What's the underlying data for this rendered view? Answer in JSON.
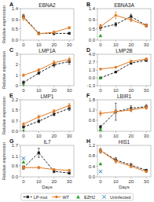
{
  "chart_data": [
    {
      "type": "line",
      "title": "EBNA2",
      "annotation": "A",
      "ylabel": "Relative expression",
      "x": [
        0,
        10,
        20,
        30
      ],
      "series": [
        {
          "name": "LP-mut",
          "color": "#222222",
          "line_style": "dashed",
          "marker": "square",
          "values": [
            1.05,
            0.3,
            0.3,
            0.3
          ],
          "errors": [
            0.1,
            0.05,
            0.07,
            0.04
          ]
        },
        {
          "name": "WT",
          "color": "#e07820",
          "line_style": "solid",
          "marker": "circle",
          "values": [
            1.0,
            0.28,
            0.35,
            0.55
          ],
          "errors": [
            0.12,
            0.04,
            0.06,
            0.05
          ]
        }
      ],
      "xlim": [
        -2,
        33
      ],
      "xticks": [
        0,
        10,
        20,
        30
      ],
      "ylim": [
        0,
        1.4
      ],
      "yticks": [
        {
          "value": 0,
          "label": "0.0"
        },
        0.5,
        0.9,
        1.4
      ]
    },
    {
      "type": "line",
      "title": "EBNA3A",
      "annotation": "B",
      "x": [
        0,
        10,
        20,
        30
      ],
      "series": [
        {
          "name": "LP-mut",
          "color": "#222222",
          "line_style": "dashed",
          "marker": "square",
          "values": [
            0.55,
            0.7,
            1.05,
            0.65
          ],
          "errors": [
            0.12,
            0.08,
            0.1,
            0.06
          ]
        },
        {
          "name": "WT",
          "color": "#e07820",
          "line_style": "solid",
          "marker": "circle",
          "values": [
            0.6,
            1.1,
            0.9,
            0.65
          ],
          "errors": [
            0.1,
            0.15,
            0.08,
            0.07
          ]
        },
        {
          "name": "EZH2",
          "type": "scatter",
          "color": "#2ca02c",
          "marker": "triangle",
          "x": [
            0
          ],
          "values": [
            0.2
          ]
        }
      ],
      "xlim": [
        -2,
        33
      ],
      "xticks": [
        0,
        10,
        20,
        30
      ],
      "ylim": [
        0,
        1.4
      ],
      "yticks": [
        {
          "value": 0,
          "label": "0.0"
        },
        0.5,
        0.9,
        1.4
      ]
    },
    {
      "type": "line",
      "title": "LMP1A",
      "annotation": "C",
      "ylabel": "Relative expression",
      "x": [
        0,
        10,
        20,
        30
      ],
      "series": [
        {
          "name": "LP-mut",
          "color": "#222222",
          "line_style": "dashed",
          "marker": "square",
          "values": [
            0.3,
            1.2,
            2.0,
            2.3
          ],
          "errors": [
            0.15,
            0.1,
            0.2,
            0.25
          ]
        },
        {
          "name": "WT",
          "color": "#e07820",
          "line_style": "solid",
          "marker": "circle",
          "values": [
            1.0,
            1.5,
            2.2,
            2.5
          ],
          "errors": [
            0.12,
            0.12,
            0.18,
            0.2
          ]
        },
        {
          "name": "EZH2",
          "type": "scatter",
          "color": "#2ca02c",
          "marker": "triangle",
          "x": [
            0
          ],
          "values": [
            0.05
          ]
        }
      ],
      "xlim": [
        -2,
        33
      ],
      "xticks": [
        0,
        10,
        20,
        30
      ],
      "ylim": [
        0,
        3.0
      ],
      "yticks": [
        0,
        1,
        2,
        3
      ]
    },
    {
      "type": "line",
      "title": "LMP2B",
      "annotation": "D",
      "x": [
        0,
        10,
        20,
        30
      ],
      "series": [
        {
          "name": "LP-mut",
          "color": "#222222",
          "line_style": "dashed",
          "marker": "square",
          "values": [
            0.0,
            1.0,
            2.5,
            3.0
          ],
          "errors": [
            0.05,
            0.1,
            0.2,
            0.25
          ]
        },
        {
          "name": "WT",
          "color": "#e07820",
          "line_style": "solid",
          "marker": "circle",
          "values": [
            1.5,
            1.8,
            2.8,
            3.2
          ],
          "errors": [
            0.15,
            0.12,
            0.2,
            0.2
          ]
        },
        {
          "name": "EZH2",
          "type": "scatter",
          "color": "#2ca02c",
          "marker": "triangle",
          "x": [
            0
          ],
          "values": [
            0.05
          ]
        }
      ],
      "xlim": [
        -2,
        33
      ],
      "xticks": [
        0,
        10,
        20,
        30
      ],
      "ylim": [
        -1.3,
        4.0
      ],
      "yticks": [
        -1.3,
        {
          "value": 0,
          "label": "0.0"
        },
        1.3,
        2.7,
        {
          "value": 4,
          "label": "4.0"
        }
      ]
    },
    {
      "type": "line",
      "title": "LMP1",
      "annotation": "E",
      "ylabel": "Relative expression",
      "x": [
        0,
        10,
        20,
        30
      ],
      "series": [
        {
          "name": "LP-mut",
          "color": "#222222",
          "line_style": "dashed",
          "marker": "square",
          "values": [
            0.3,
            0.7,
            1.2,
            1.6
          ],
          "errors": [
            0.08,
            0.1,
            0.12,
            0.15
          ]
        },
        {
          "name": "WT",
          "color": "#e07820",
          "line_style": "solid",
          "marker": "circle",
          "values": [
            0.5,
            1.0,
            1.4,
            1.8
          ],
          "errors": [
            0.1,
            0.12,
            0.12,
            0.15
          ]
        },
        {
          "name": "EZH2",
          "type": "scatter",
          "color": "#2ca02c",
          "marker": "triangle",
          "x": [
            0
          ],
          "values": [
            0.05
          ]
        }
      ],
      "xlim": [
        -2,
        33
      ],
      "xticks": [
        0,
        10,
        20,
        30
      ],
      "ylim": [
        0,
        2.2
      ],
      "yticks": [
        {
          "value": 0,
          "label": "0.0"
        },
        0.7,
        1.5,
        2.2
      ]
    },
    {
      "type": "line",
      "title": "LBIR1",
      "annotation": "F",
      "x": [
        0,
        10,
        20,
        30
      ],
      "series": [
        {
          "name": "LP-mut",
          "color": "#222222",
          "line_style": "dashed",
          "marker": "square",
          "values": [
            0.2,
            1.1,
            1.3,
            1.4
          ],
          "errors": [
            0.1,
            0.5,
            0.15,
            0.12
          ]
        },
        {
          "name": "WT",
          "color": "#e07820",
          "line_style": "solid",
          "marker": "circle",
          "values": [
            1.0,
            1.1,
            1.2,
            1.35
          ],
          "errors": [
            0.15,
            0.12,
            0.1,
            0.1
          ]
        },
        {
          "name": "EZH2",
          "type": "scatter",
          "color": "#2ca02c",
          "marker": "triangle",
          "x": [
            0
          ],
          "values": [
            0.05
          ]
        }
      ],
      "xlim": [
        -2,
        33
      ],
      "xticks": [
        0,
        10,
        20,
        30
      ],
      "ylim": [
        -0.05,
        1.8
      ],
      "yticks": [
        0.6,
        1.2,
        1.8
      ]
    },
    {
      "type": "line",
      "title": "IL7",
      "annotation": "G",
      "xlabel": "Days",
      "ylabel": "Relative expression",
      "x": [
        0,
        10,
        20,
        30
      ],
      "series": [
        {
          "name": "LP-mut",
          "color": "#222222",
          "line_style": "dashed",
          "marker": "square",
          "values": [
            0.5,
            1.3,
            0.3,
            0.2
          ],
          "errors": [
            0.1,
            0.25,
            0.08,
            0.05
          ]
        },
        {
          "name": "WT",
          "color": "#e07820",
          "line_style": "solid",
          "marker": "circle",
          "values": [
            0.5,
            0.5,
            0.4,
            0.35
          ],
          "errors": [
            0.08,
            0.07,
            0.05,
            0.04
          ]
        },
        {
          "name": "EZH2",
          "type": "scatter",
          "color": "#2ca02c",
          "marker": "triangle",
          "x": [
            0
          ],
          "values": [
            0.8
          ]
        },
        {
          "name": "Uninfected",
          "type": "scatter",
          "color": "#1f77b4",
          "marker": "x",
          "x": [
            0
          ],
          "values": [
            1.0
          ]
        }
      ],
      "xlim": [
        -2,
        33
      ],
      "xticks": [
        0,
        10,
        20,
        30
      ],
      "ylim": [
        0,
        1.7
      ],
      "yticks": [
        {
          "value": 0,
          "label": "0.0"
        },
        0.6,
        1.1,
        1.7
      ],
      "legend": "bottom"
    },
    {
      "type": "line",
      "title": "HIS1",
      "annotation": "H",
      "xlabel": "Days",
      "x": [
        0,
        10,
        20,
        30
      ],
      "series": [
        {
          "name": "LP-mut",
          "color": "#222222",
          "line_style": "dashed",
          "marker": "square",
          "values": [
            1.0,
            0.65,
            0.45,
            0.25
          ],
          "errors": [
            0.08,
            0.08,
            0.06,
            0.04
          ]
        },
        {
          "name": "WT",
          "color": "#e07820",
          "line_style": "solid",
          "marker": "circle",
          "values": [
            1.0,
            0.6,
            0.4,
            0.2
          ],
          "errors": [
            0.1,
            0.08,
            0.06,
            0.04
          ]
        },
        {
          "name": "EZH2",
          "type": "scatter",
          "color": "#2ca02c",
          "marker": "triangle",
          "x": [
            0
          ],
          "values": [
            0.5
          ]
        },
        {
          "name": "Uninfected",
          "type": "scatter",
          "color": "#1f77b4",
          "marker": "x",
          "x": [
            0
          ],
          "values": [
            0.2
          ]
        }
      ],
      "xlim": [
        -2,
        33
      ],
      "xticks": [
        0,
        10,
        20,
        30
      ],
      "ylim": [
        0,
        1.2
      ],
      "yticks": [
        {
          "value": 0,
          "label": "0.0"
        },
        0.4,
        0.8,
        1.2
      ]
    }
  ]
}
